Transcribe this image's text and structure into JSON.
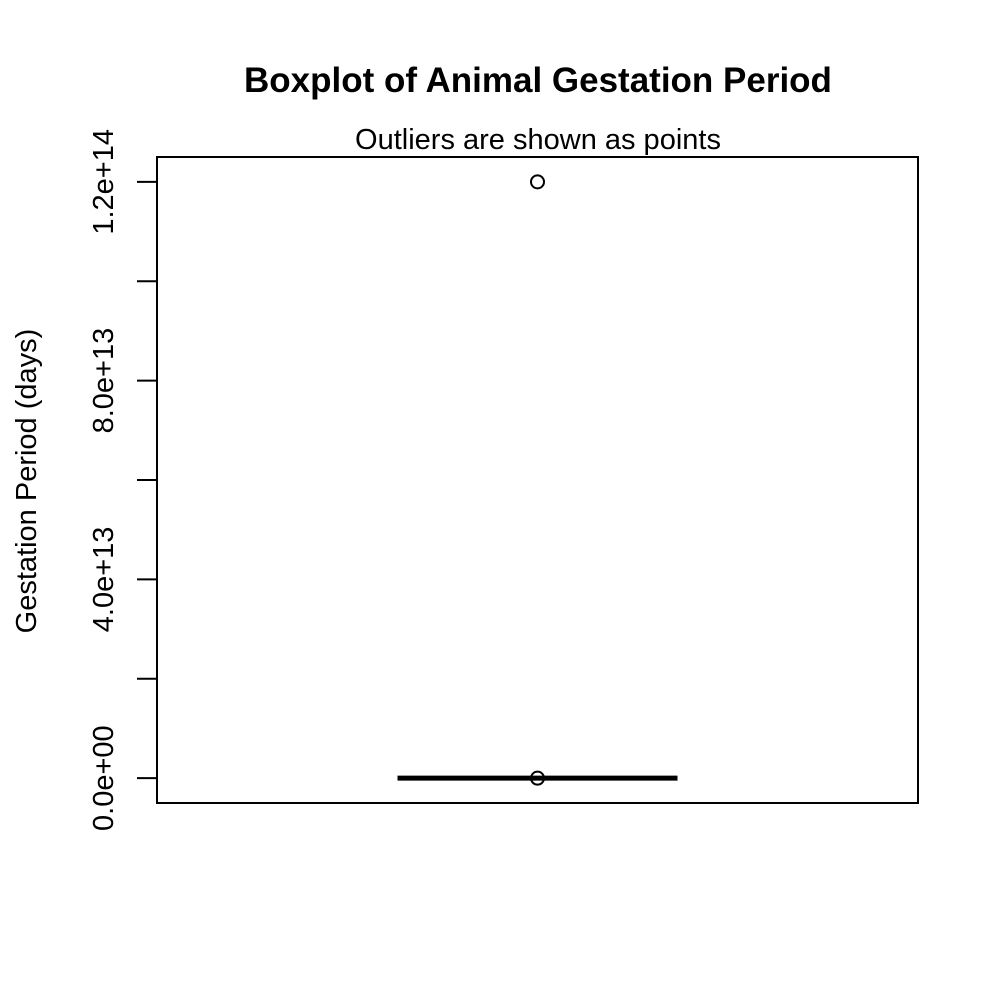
{
  "chart_data": {
    "type": "box",
    "title": "Boxplot of Animal Gestation Period",
    "subtitle": "Outliers are shown as points",
    "xlabel": "",
    "ylabel": "Gestation Period (days)",
    "ylim": [
      -5000000000000,
      125000000000000
    ],
    "yticks": [
      0,
      20000000000000,
      40000000000000,
      60000000000000,
      80000000000000,
      100000000000000,
      120000000000000
    ],
    "ytick_labels": [
      "0.0e+00",
      "",
      "4.0e+13",
      "",
      "8.0e+13",
      "",
      "1.2e+14"
    ],
    "grid": false,
    "box": {
      "min": 0,
      "q1": 0,
      "median": 0,
      "q3": 0,
      "max": 0
    },
    "outliers": [
      120000000000000,
      0
    ]
  }
}
